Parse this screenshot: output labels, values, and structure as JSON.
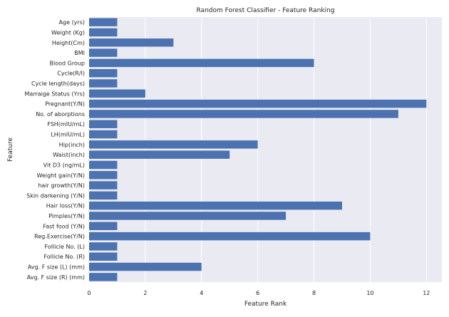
{
  "chart_data": {
    "type": "bar",
    "orientation": "horizontal",
    "title": "Random Forest Classifier - Feature Ranking",
    "xlabel": "Feature Rank",
    "ylabel": "Feature",
    "xlim": [
      0,
      12.55
    ],
    "xticks": [
      0,
      2,
      4,
      6,
      8,
      10,
      12
    ],
    "grid": true,
    "bar_color": "#4c72b0",
    "background_color": "#eaeaf2",
    "categories": [
      "Age (yrs)",
      "Weight (Kg)",
      "Height(Cm)",
      "BMI",
      "Blood Group",
      "Cycle(R/I)",
      "Cycle length(days)",
      "Marraige Status (Yrs)",
      "Pregnant(Y/N)",
      "No. of aborptions",
      "FSH(mIU/mL)",
      "LH(mIU/mL)",
      "Hip(inch)",
      "Waist(inch)",
      "Vit D3 (ng/mL)",
      "Weight gain(Y/N)",
      "hair growth(Y/N)",
      "Skin darkening (Y/N)",
      "Hair loss(Y/N)",
      "Pimples(Y/N)",
      "Fast food (Y/N)",
      "Reg.Exercise(Y/N)",
      "Follicle No. (L)",
      "Follicle No. (R)",
      "Avg. F size (L) (mm)",
      "Avg. F size (R) (mm)"
    ],
    "values": [
      1,
      1,
      3,
      1,
      8,
      1,
      1,
      2,
      12,
      11,
      1,
      1,
      6,
      5,
      1,
      1,
      1,
      1,
      9,
      7,
      1,
      10,
      1,
      1,
      4,
      1
    ]
  }
}
